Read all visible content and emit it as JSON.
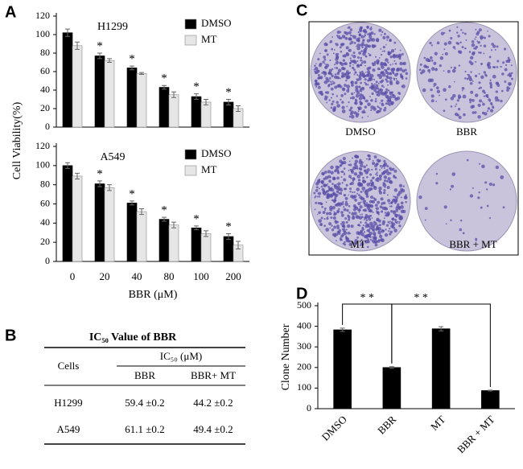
{
  "panel_labels": [
    "A",
    "B",
    "C",
    "D"
  ],
  "chart_data": [
    {
      "type": "bar",
      "title": "H1299",
      "ylabel": "Cell Viability(%)",
      "categories": [
        null,
        null,
        null,
        null,
        null,
        null
      ],
      "series": [
        {
          "name": "DMSO",
          "color": "#000000",
          "values": [
            102,
            77,
            64,
            43,
            33,
            27
          ],
          "errors": [
            4,
            3,
            2,
            2,
            3,
            3
          ]
        },
        {
          "name": "MT",
          "color": "#e6e6e6",
          "values": [
            88,
            72,
            58,
            35,
            27,
            20
          ],
          "errors": [
            4,
            2,
            1,
            3,
            3,
            3
          ]
        }
      ],
      "annotations": [
        null,
        "*",
        "*",
        "*",
        "*",
        "*"
      ],
      "ylim": [
        0,
        120
      ],
      "yticks": [
        0,
        20,
        40,
        60,
        80,
        100,
        120
      ],
      "legend": "upper right"
    },
    {
      "type": "bar",
      "title": "A549",
      "xlabel": "BBR (μM)",
      "categories": [
        "0",
        "20",
        "40",
        "80",
        "100",
        "200"
      ],
      "series": [
        {
          "name": "DMSO",
          "color": "#000000",
          "values": [
            100,
            81,
            61,
            44,
            35,
            26
          ],
          "errors": [
            3,
            3,
            2,
            2,
            2,
            3
          ]
        },
        {
          "name": "MT",
          "color": "#e6e6e6",
          "values": [
            89,
            77,
            52,
            38,
            29,
            17
          ],
          "errors": [
            3,
            3,
            3,
            3,
            3,
            4
          ]
        }
      ],
      "annotations": [
        null,
        "*",
        "*",
        "*",
        "*",
        "*"
      ],
      "ylim": [
        0,
        120
      ],
      "yticks": [
        0,
        20,
        40,
        60,
        80,
        100,
        120
      ],
      "legend": "upper right"
    },
    {
      "type": "bar",
      "ylabel": "Clone Number",
      "categories": [
        "DMSO",
        "BBR",
        "MT",
        "BBR + MT"
      ],
      "series": [
        {
          "name": null,
          "color": "#000000",
          "values": [
            383,
            200,
            388,
            88
          ],
          "errors": [
            8,
            4,
            10,
            2
          ]
        }
      ],
      "significance": [
        "* *",
        "* *"
      ],
      "ylim": [
        0,
        500
      ],
      "yticks": [
        0,
        100,
        200,
        300,
        400,
        500
      ]
    }
  ],
  "table": {
    "title": "IC₅₀ Value of BBR",
    "cells_header": "Cells",
    "group_header": "IC₅₀ (μM)",
    "columns": [
      "BBR",
      "BBR+ MT"
    ],
    "rows": [
      [
        "H1299",
        "59.4 ±0.2",
        "44.2 ±0.2"
      ],
      [
        "A549",
        "61.1 ±0.2",
        "49.4 ±0.2"
      ]
    ]
  },
  "plates": [
    "DMSO",
    "BBR",
    "MT",
    "BBR + MT"
  ]
}
